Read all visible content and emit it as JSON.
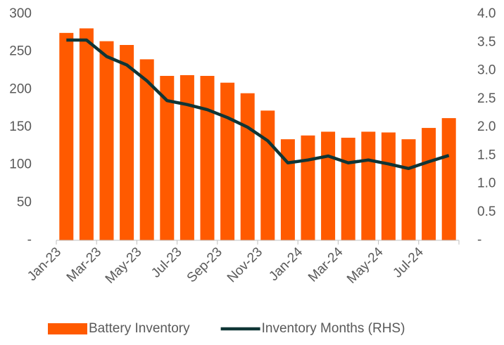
{
  "chart_data": {
    "type": "bar",
    "categories": [
      "Jan-23",
      null,
      "Mar-23",
      null,
      "May-23",
      null,
      "Jul-23",
      null,
      "Sep-23",
      null,
      "Nov-23",
      null,
      "Jan-24",
      null,
      "Mar-24",
      null,
      "May-24",
      null,
      "Jul-24",
      null
    ],
    "series": [
      {
        "name": "Battery Inventory",
        "type": "bar",
        "color": "#ff5a00",
        "values": [
          275,
          281,
          264,
          259,
          240,
          218,
          219,
          218,
          209,
          195,
          172,
          134,
          139,
          144,
          136,
          144,
          143,
          134,
          149,
          162
        ]
      },
      {
        "name": "Inventory Months (RHS)",
        "type": "line",
        "axis": "y2",
        "color": "#0f3535",
        "values": [
          3.54,
          3.54,
          3.25,
          3.1,
          2.82,
          2.47,
          2.4,
          2.31,
          2.17,
          2.0,
          1.76,
          1.37,
          1.42,
          1.49,
          1.37,
          1.42,
          1.35,
          1.27,
          1.39,
          1.5
        ]
      }
    ],
    "ylim": [
      0,
      300
    ],
    "yticks": [
      {
        "value": 0,
        "label": "-"
      },
      50,
      100,
      150,
      200,
      250,
      300
    ],
    "y2lim": [
      0,
      4
    ],
    "y2ticks": [
      {
        "value": 0,
        "label": "-"
      },
      0.5,
      {
        "value": 1,
        "label": "1.0"
      },
      1.5,
      {
        "value": 2,
        "label": "2.0"
      },
      2.5,
      {
        "value": 3,
        "label": "3.0"
      },
      3.5,
      {
        "value": 4,
        "label": "4.0"
      }
    ],
    "legend": "bottom"
  }
}
